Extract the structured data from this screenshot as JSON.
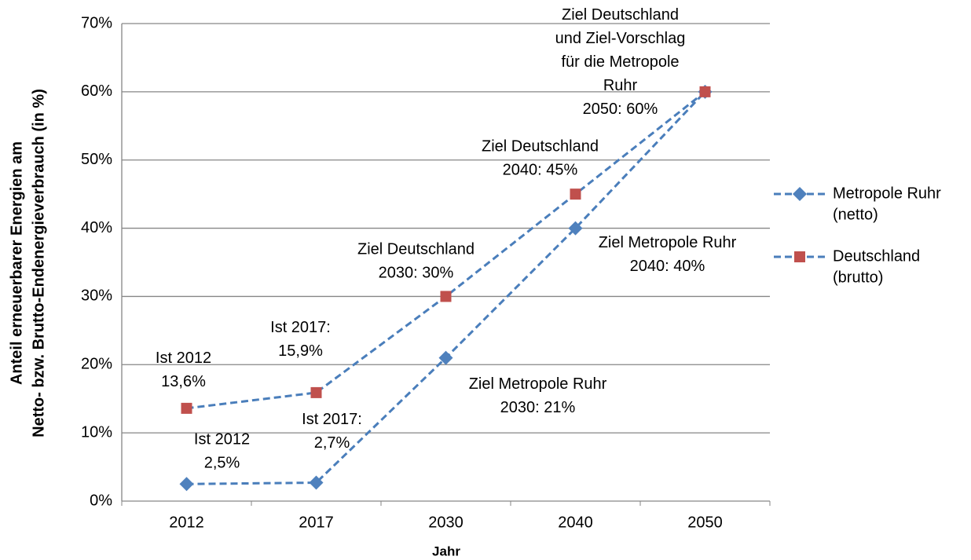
{
  "chart_data": {
    "type": "line",
    "ylabel": [
      "Anteil erneuerbarer Energien am",
      "Netto- bzw. Brutto-Endenergieverbrauch (in %)"
    ],
    "xlabel": "Jahr",
    "categories": [
      "2012",
      "2017",
      "2030",
      "2040",
      "2050"
    ],
    "ylim": [
      0,
      70
    ],
    "yticks": [
      {
        "value": 0,
        "label": "0%"
      },
      {
        "value": 10,
        "label": "10%"
      },
      {
        "value": 20,
        "label": "20%"
      },
      {
        "value": 30,
        "label": "30%"
      },
      {
        "value": 40,
        "label": "40%"
      },
      {
        "value": 50,
        "label": "50%"
      },
      {
        "value": 60,
        "label": "60%"
      },
      {
        "value": 70,
        "label": "70%"
      }
    ],
    "grid": true,
    "legend": "right",
    "series": [
      {
        "name": [
          "Metropole Ruhr",
          "(netto)"
        ],
        "color": "#4f81bd",
        "line_color": "#4a7ebb",
        "marker": "diamond",
        "values": [
          2.5,
          2.7,
          21,
          40,
          60
        ],
        "value_labels": [
          [
            "Ist 2012",
            "2,5%"
          ],
          [
            "Ist 2017:",
            "2,7%"
          ],
          [
            "Ziel Metropole Ruhr",
            "2030: 21%"
          ],
          [
            "Ziel Metropole Ruhr",
            "2040: 40%"
          ],
          null
        ]
      },
      {
        "name": [
          "Deutschland",
          "(brutto)"
        ],
        "color": "#c0504d",
        "line_color": "#4a7ebb",
        "marker": "square",
        "values": [
          13.6,
          15.9,
          30,
          45,
          60
        ],
        "value_labels": [
          [
            "Ist 2012",
            "13,6%"
          ],
          [
            "Ist 2017:",
            "15,9%"
          ],
          [
            "Ziel Deutschland",
            "2030: 30%"
          ],
          [
            "Ziel Deutschland",
            "2040: 45%"
          ],
          [
            "Ziel Deutschland",
            "und Ziel-Vorschlag",
            "für die Metropole",
            "Ruhr",
            "2050: 60%"
          ]
        ]
      }
    ]
  }
}
